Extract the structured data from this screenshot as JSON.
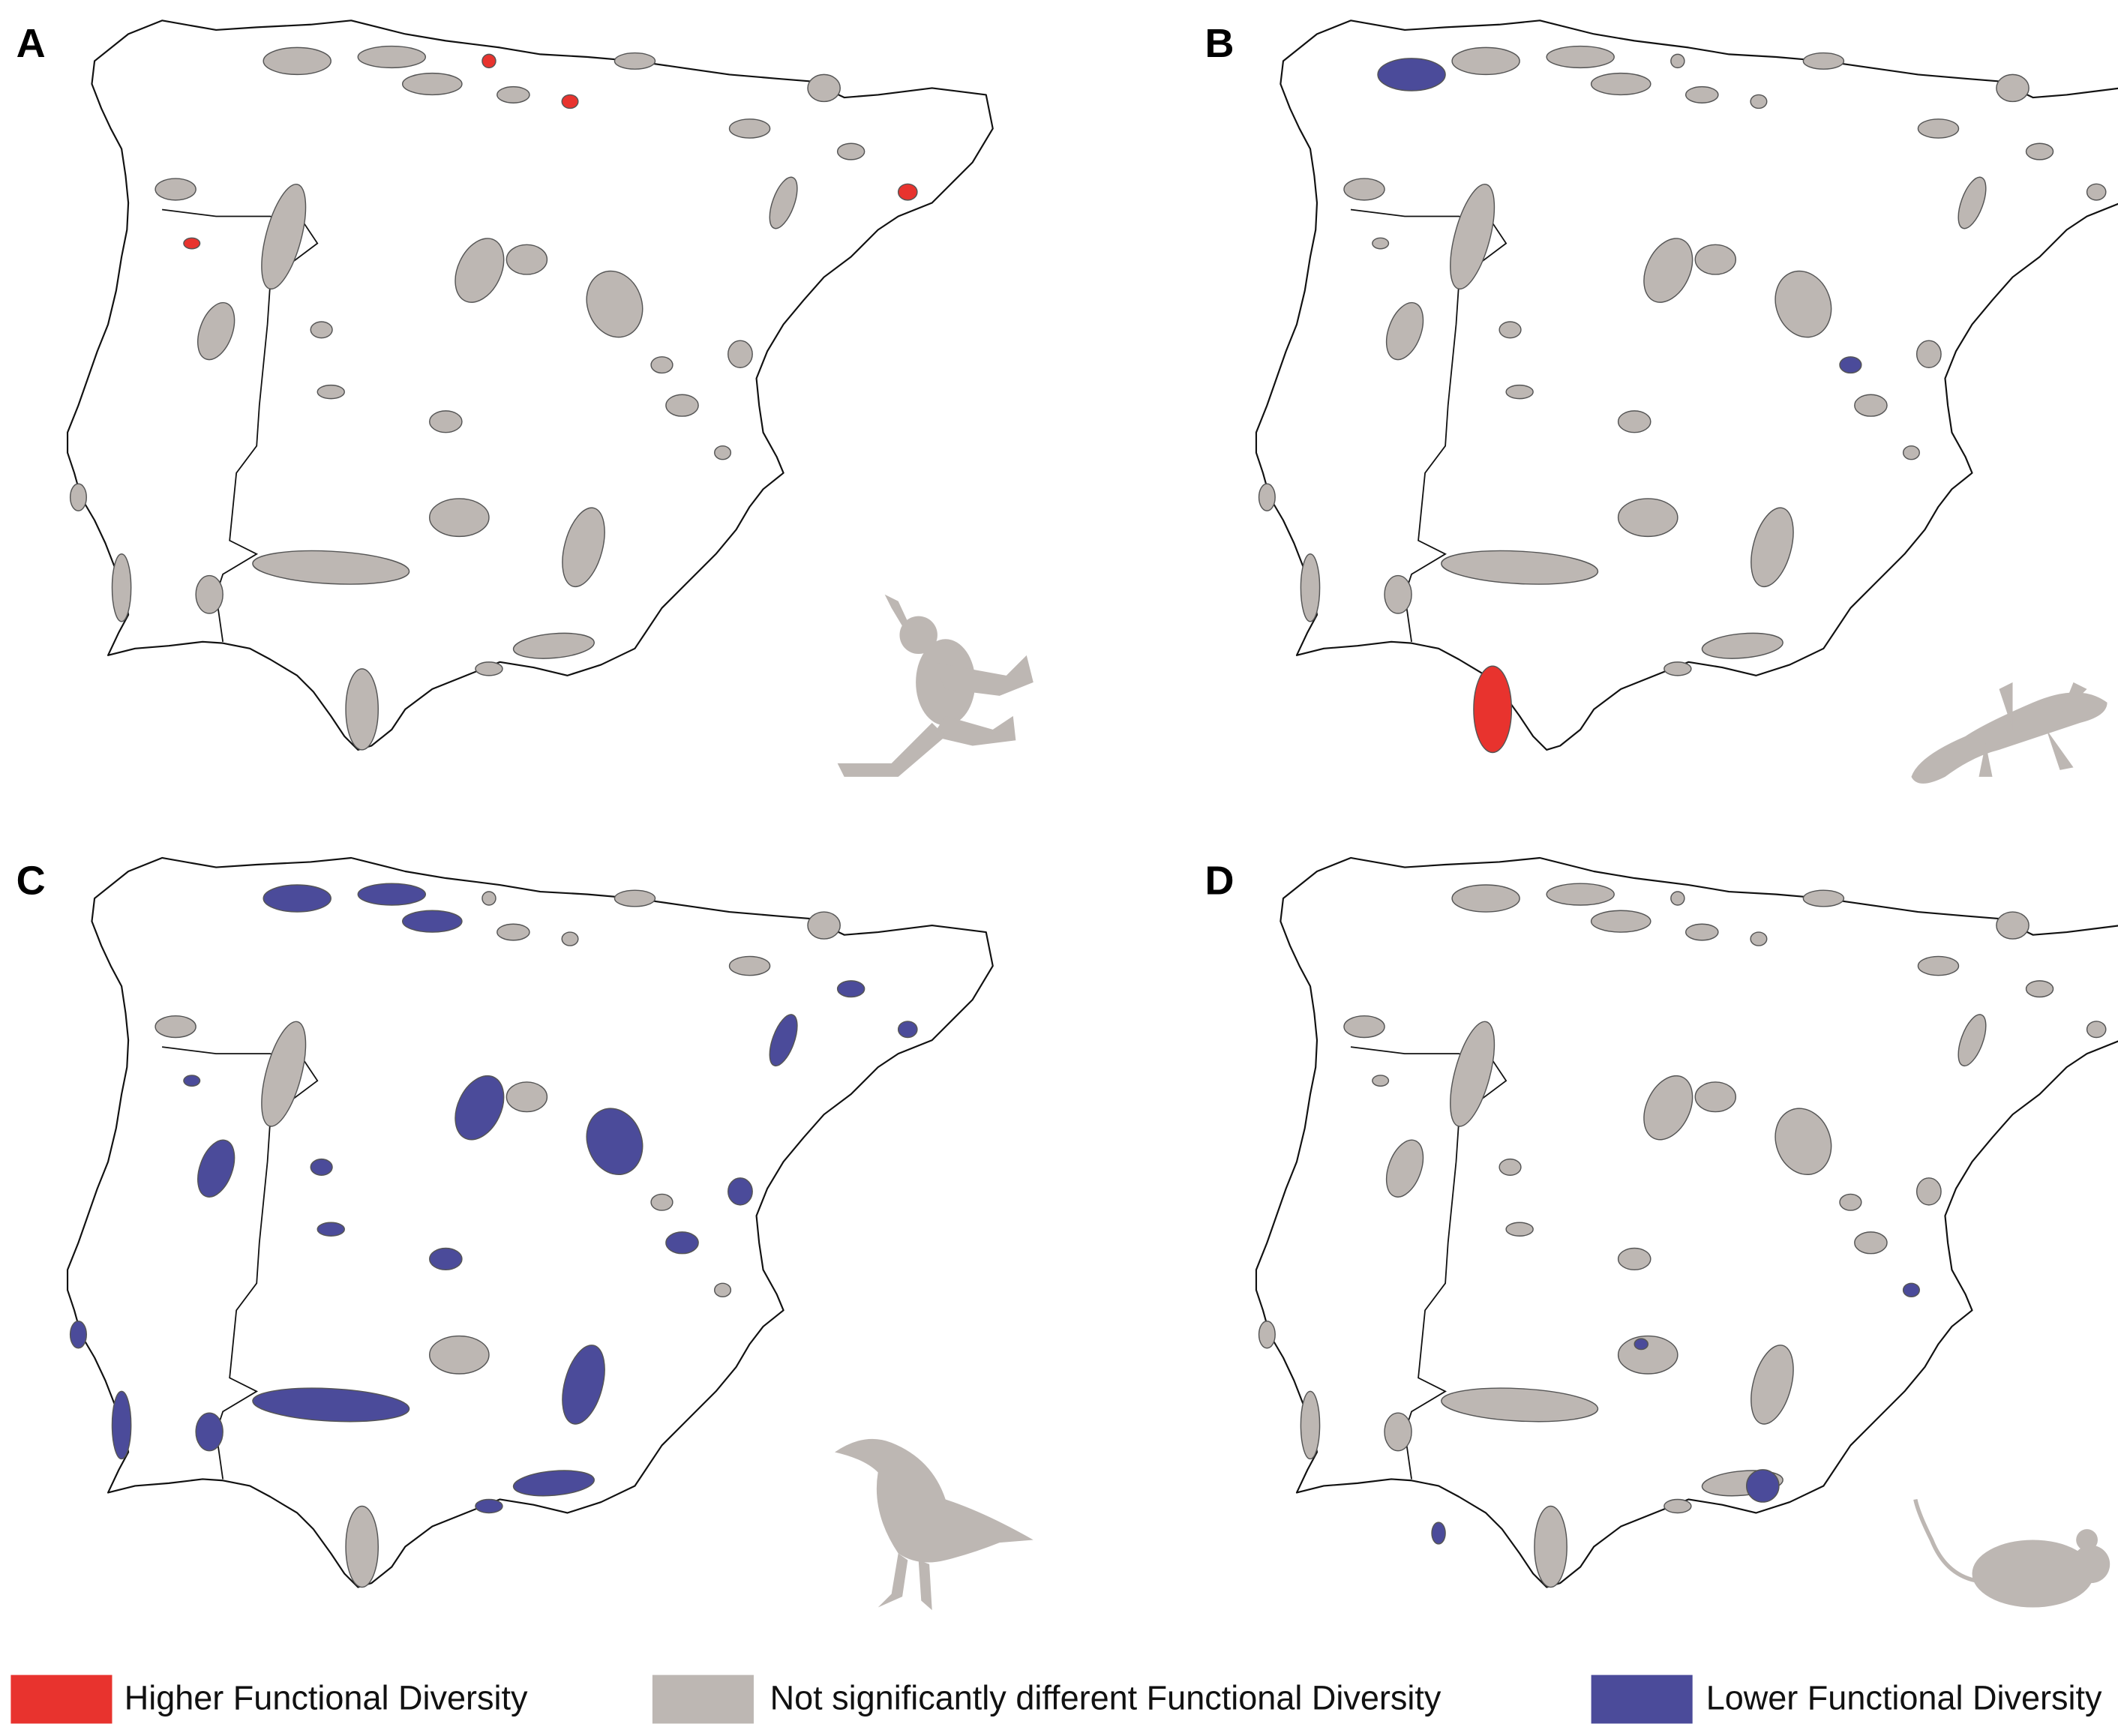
{
  "panels": [
    {
      "letter": "A"
    },
    {
      "letter": "B"
    },
    {
      "letter": "C"
    },
    {
      "letter": "D"
    }
  ],
  "legend": [
    {
      "label": "Higher Functional Diversity",
      "color": "#e8332e"
    },
    {
      "label": "Not significantly different Functional Diversity",
      "color": "#bdb7b3"
    },
    {
      "label": "Lower Functional Diversity",
      "color": "#4b4b9a"
    }
  ]
}
